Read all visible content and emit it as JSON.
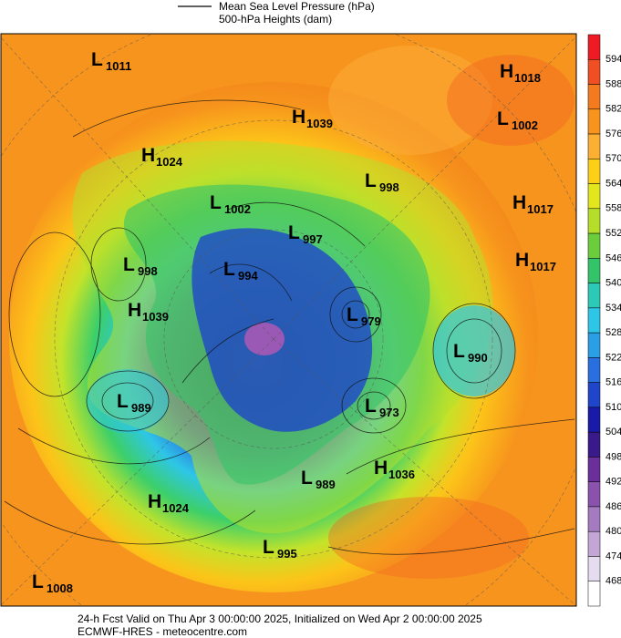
{
  "header": {
    "legend": [
      "Mean Sea Level Pressure (hPa)",
      "500-hPa Heights (dam)"
    ]
  },
  "colorbar": {
    "labels": [
      594,
      588,
      582,
      576,
      570,
      564,
      558,
      552,
      546,
      540,
      534,
      528,
      522,
      516,
      510,
      504,
      498,
      492,
      486,
      480,
      474,
      468
    ],
    "colors": [
      "#ee1b24",
      "#f04e23",
      "#f47a20",
      "#f7941d",
      "#fbb034",
      "#fdd017",
      "#e3e61c",
      "#b5de2b",
      "#6ccd3c",
      "#33c46a",
      "#2cc9b8",
      "#2ec6e6",
      "#2a9fe6",
      "#2a6fe0",
      "#1f46c8",
      "#1a1aa8",
      "#3a1a8a",
      "#6a2f9a",
      "#8a52ad",
      "#a57bbf",
      "#c3a6d6",
      "#e6dcef",
      "#ffffff"
    ]
  },
  "pressure_centers": [
    {
      "kind": "L",
      "value": 1011
    },
    {
      "kind": "H",
      "value": 1018
    },
    {
      "kind": "L",
      "value": 1002
    },
    {
      "kind": "H",
      "value": 1039
    },
    {
      "kind": "H",
      "value": 1024
    },
    {
      "kind": "L",
      "value": 998
    },
    {
      "kind": "L",
      "value": 1002
    },
    {
      "kind": "H",
      "value": 1017
    },
    {
      "kind": "L",
      "value": 997
    },
    {
      "kind": "H",
      "value": 1017
    },
    {
      "kind": "L",
      "value": 998
    },
    {
      "kind": "L",
      "value": 994
    },
    {
      "kind": "H",
      "value": 1039
    },
    {
      "kind": "L",
      "value": 979
    },
    {
      "kind": "L",
      "value": 990
    },
    {
      "kind": "L",
      "value": 989
    },
    {
      "kind": "L",
      "value": 973
    },
    {
      "kind": "H",
      "value": 1036
    },
    {
      "kind": "L",
      "value": 989
    },
    {
      "kind": "H",
      "value": 1024
    },
    {
      "kind": "L",
      "value": 995
    },
    {
      "kind": "L",
      "value": 1008
    }
  ],
  "footer": [
    "24-h Fcst Valid on Thu Apr  3 00:00:00 2025, Initialized on Wed Apr  2 00:00:00 2025",
    "ECMWF-HRES  - meteocentre.com"
  ]
}
